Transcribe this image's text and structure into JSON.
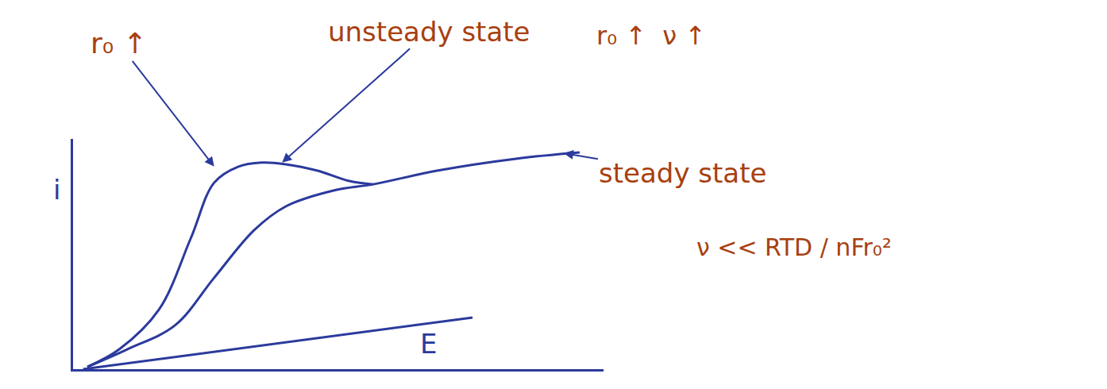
{
  "chart_data": {
    "type": "line",
    "x_label": "E",
    "y_label": "i",
    "xlim": [
      0,
      10
    ],
    "ylim": [
      0,
      10
    ],
    "tick_labels": false,
    "grid": false,
    "line_style": "solid",
    "series": [
      {
        "color": "#2b3a9c",
        "x": [
          0.27,
          0.87,
          1.62,
          2.22,
          2.66,
          3.11,
          3.56,
          4.01,
          4.61,
          5.21,
          5.66
        ],
        "values": [
          0.1,
          0.86,
          2.59,
          5.69,
          8.1,
          8.79,
          8.97,
          8.9,
          8.62,
          8.17,
          8.03
        ]
      },
      {
        "color": "#2b3a9c",
        "x": [
          0.27,
          1.02,
          1.92,
          2.66,
          3.41,
          4.01,
          4.91,
          5.66,
          6.86,
          8.35,
          9.55
        ],
        "values": [
          0.1,
          0.86,
          1.9,
          3.97,
          6.03,
          7.07,
          7.76,
          8.03,
          8.62,
          9.14,
          9.41
        ]
      },
      {
        "color": "#2b3a9c",
        "x": [
          0.19,
          7.53
        ],
        "values": [
          0.0,
          2.24
        ]
      }
    ],
    "annotations": [
      "r₀ ↑",
      "unsteady state",
      "r₀ ↑  ν ↑",
      "steady state",
      "ν << RTD / nFr₀²"
    ],
    "annotation_color": "#a8400f"
  }
}
